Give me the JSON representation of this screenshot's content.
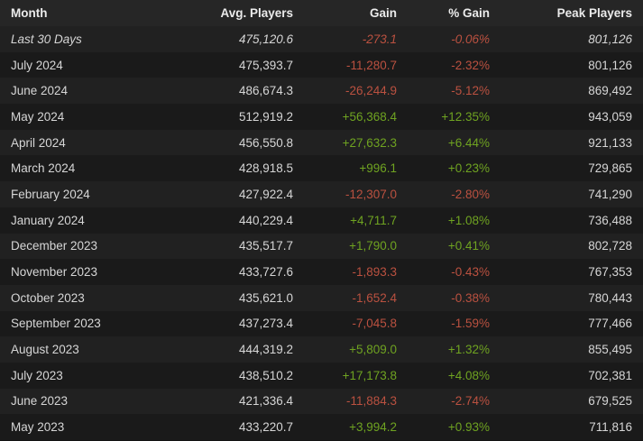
{
  "colors": {
    "positive": "#6fa321",
    "negative": "#bb5140",
    "background": "#1b1b1b",
    "header_background": "#262626",
    "row_odd": "#212121",
    "row_even": "#1a1a1a",
    "text": "#d6d6d6"
  },
  "chart_data": {
    "type": "table",
    "title": "",
    "columns": [
      "Month",
      "Avg. Players",
      "Gain",
      "% Gain",
      "Peak Players"
    ],
    "first_row_italic": true,
    "rows": [
      [
        "Last 30 Days",
        "475,120.6",
        "-273.1",
        "-0.06%",
        "801,126"
      ],
      [
        "July 2024",
        "475,393.7",
        "-11,280.7",
        "-2.32%",
        "801,126"
      ],
      [
        "June 2024",
        "486,674.3",
        "-26,244.9",
        "-5.12%",
        "869,492"
      ],
      [
        "May 2024",
        "512,919.2",
        "+56,368.4",
        "+12.35%",
        "943,059"
      ],
      [
        "April 2024",
        "456,550.8",
        "+27,632.3",
        "+6.44%",
        "921,133"
      ],
      [
        "March 2024",
        "428,918.5",
        "+996.1",
        "+0.23%",
        "729,865"
      ],
      [
        "February 2024",
        "427,922.4",
        "-12,307.0",
        "-2.80%",
        "741,290"
      ],
      [
        "January 2024",
        "440,229.4",
        "+4,711.7",
        "+1.08%",
        "736,488"
      ],
      [
        "December 2023",
        "435,517.7",
        "+1,790.0",
        "+0.41%",
        "802,728"
      ],
      [
        "November 2023",
        "433,727.6",
        "-1,893.3",
        "-0.43%",
        "767,353"
      ],
      [
        "October 2023",
        "435,621.0",
        "-1,652.4",
        "-0.38%",
        "780,443"
      ],
      [
        "September 2023",
        "437,273.4",
        "-7,045.8",
        "-1.59%",
        "777,466"
      ],
      [
        "August 2023",
        "444,319.2",
        "+5,809.0",
        "+1.32%",
        "855,495"
      ],
      [
        "July 2023",
        "438,510.2",
        "+17,173.8",
        "+4.08%",
        "702,381"
      ],
      [
        "June 2023",
        "421,336.4",
        "-11,884.3",
        "-2.74%",
        "679,525"
      ],
      [
        "May 2023",
        "433,220.7",
        "+3,994.2",
        "+0.93%",
        "711,816"
      ]
    ]
  }
}
